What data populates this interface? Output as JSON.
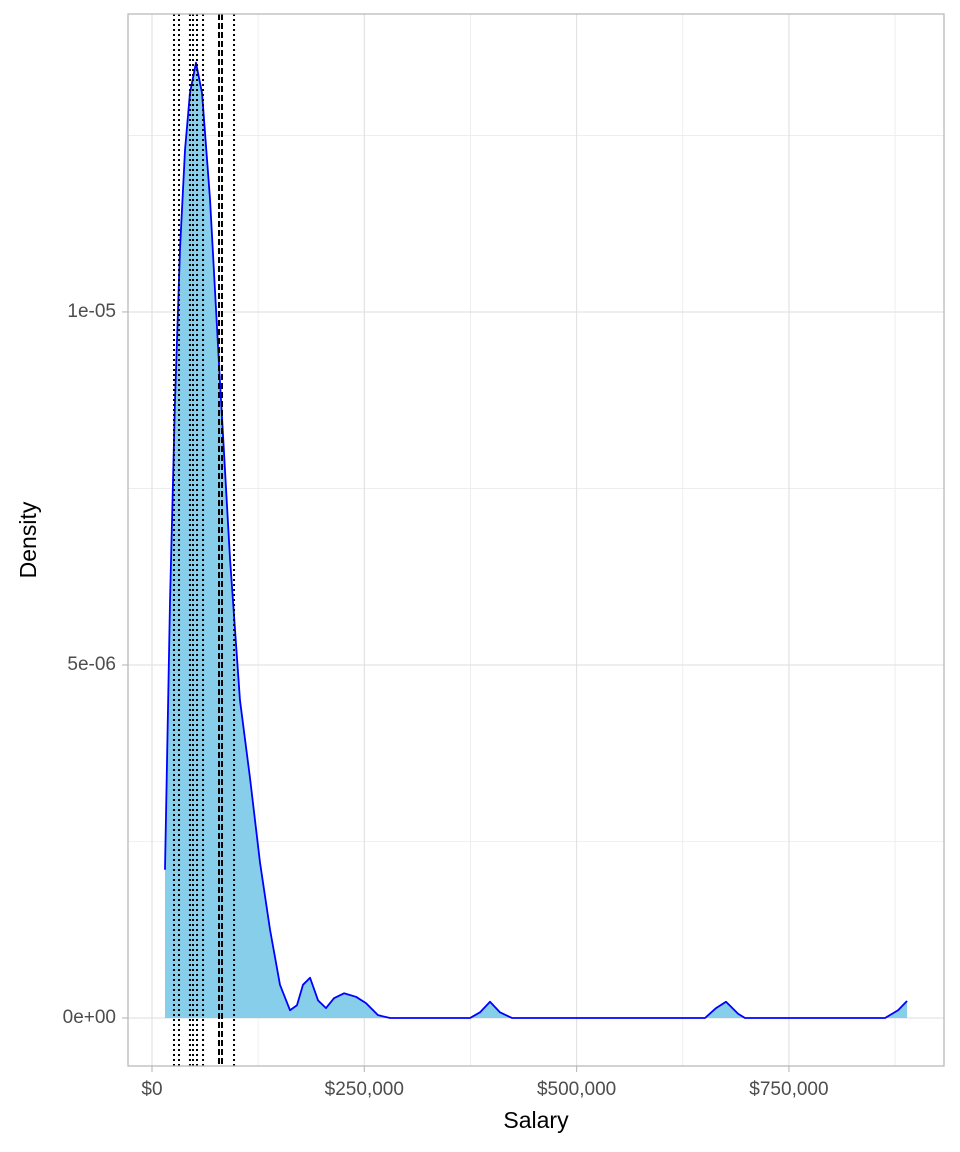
{
  "chart_data": {
    "type": "density",
    "x_label": "Salary",
    "y_label": "Density",
    "x": [
      15300,
      21200,
      27100,
      33000,
      38900,
      44700,
      51800,
      58900,
      68300,
      80100,
      91900,
      103600,
      115400,
      127200,
      139000,
      150700,
      162500,
      170700,
      177800,
      186100,
      195500,
      204900,
      214300,
      226100,
      240200,
      252000,
      266100,
      280300,
      374500,
      386200,
      398000,
      409800,
      423900,
      651200,
      664200,
      675900,
      690100,
      698300,
      863200,
      878500,
      889100
    ],
    "values": [
      2.1e-06,
      5.9e-06,
      8.75e-06,
      1.09e-05,
      1.23e-05,
      1.31e-05,
      1.353e-05,
      1.31e-05,
      1.16e-05,
      9e-06,
      6.5e-06,
      4.5e-06,
      3.4e-06,
      2.2e-06,
      1.25e-06,
      4.7e-07,
      1.1e-07,
      1.8e-07,
      4.7e-07,
      5.7e-07,
      2.5e-07,
      1.4e-07,
      2.8e-07,
      3.5e-07,
      3e-07,
      2.1e-07,
      4e-08,
      0,
      0,
      8e-08,
      2.3e-07,
      8e-08,
      0,
      0,
      1.4e-07,
      2.3e-07,
      6e-08,
      0,
      0,
      1.1e-07,
      2.4e-07
    ],
    "fill_color": "#87ceeb",
    "line_color": "#0000ff",
    "vlines": [
      {
        "value": 25900,
        "linetype": "dotted"
      },
      {
        "value": 31800,
        "linetype": "dotted"
      },
      {
        "value": 44700,
        "linetype": "dotted"
      },
      {
        "value": 48300,
        "linetype": "dotted"
      },
      {
        "value": 53000,
        "linetype": "dotted"
      },
      {
        "value": 60100,
        "linetype": "dotted"
      },
      {
        "value": 78900,
        "linetype": "dashed"
      },
      {
        "value": 82400,
        "linetype": "dashed"
      },
      {
        "value": 96600,
        "linetype": "dotted"
      }
    ],
    "xlim": [
      -28260,
      932600
    ],
    "ylim": [
      -6.8e-07,
      1.422e-05
    ],
    "xticks": [
      {
        "value": 0,
        "label": "$0"
      },
      {
        "value": 250000,
        "label": "$250,000"
      },
      {
        "value": 500000,
        "label": "$500,000"
      },
      {
        "value": 750000,
        "label": "$750,000"
      }
    ],
    "yticks": [
      {
        "value": 0,
        "label": "0e+00"
      },
      {
        "value": 5e-06,
        "label": "5e-06"
      },
      {
        "value": 1e-05,
        "label": "1e-05"
      }
    ],
    "x_minor_grid": [
      125000,
      375000,
      625000,
      875000
    ],
    "y_minor_grid": [
      2.5e-06,
      7.5e-06,
      1.25e-05
    ],
    "grid": true
  }
}
